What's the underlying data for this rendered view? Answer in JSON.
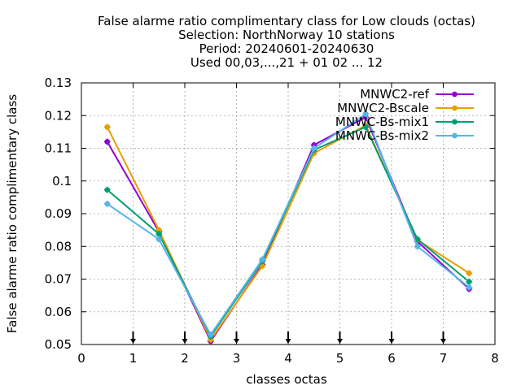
{
  "chart_data": {
    "type": "line",
    "title_lines": [
      "False alarme ratio complimentary class  for Low clouds (octas)",
      "Selection: NorthNorway     10 stations",
      "Period: 20240601-20240630",
      "Used 00,03,...,21 + 01 02 ... 12"
    ],
    "xlabel": "classes octas",
    "ylabel": "False alarme ratio complimentary class",
    "xlim": [
      0,
      8
    ],
    "ylim": [
      0.05,
      0.13
    ],
    "x_ticks": [
      "0",
      "1",
      "2",
      "3",
      "4",
      "5",
      "6",
      "7",
      "8"
    ],
    "y_ticks": [
      "0.05",
      "0.06",
      "0.07",
      "0.08",
      "0.09",
      "0.1",
      "0.11",
      "0.12",
      "0.13"
    ],
    "grid": true,
    "legend_position": "top-right",
    "x": [
      0.5,
      1.5,
      2.5,
      3.5,
      4.5,
      5.5,
      6.5,
      7.5
    ],
    "markers_x": [
      1,
      2,
      3,
      4,
      5,
      6,
      7
    ],
    "series": [
      {
        "name": "MNWC2-ref",
        "color": "#9400d3",
        "values": [
          0.112,
          0.0845,
          0.051,
          0.0745,
          0.111,
          0.1195,
          0.0815,
          0.067
        ]
      },
      {
        "name": "MNWC2-Bscale",
        "color": "#e69f00",
        "values": [
          0.1165,
          0.085,
          0.0515,
          0.074,
          0.1085,
          0.117,
          0.082,
          0.0718
        ]
      },
      {
        "name": "MNWC-Bs-mix1",
        "color": "#009e73",
        "values": [
          0.0973,
          0.0838,
          0.0525,
          0.0755,
          0.1095,
          0.1165,
          0.0822,
          0.0692
        ]
      },
      {
        "name": "MNWC-Bs-mix2",
        "color": "#56b4e9",
        "values": [
          0.093,
          0.0822,
          0.053,
          0.076,
          0.11,
          0.1205,
          0.08,
          0.0675
        ]
      }
    ]
  }
}
